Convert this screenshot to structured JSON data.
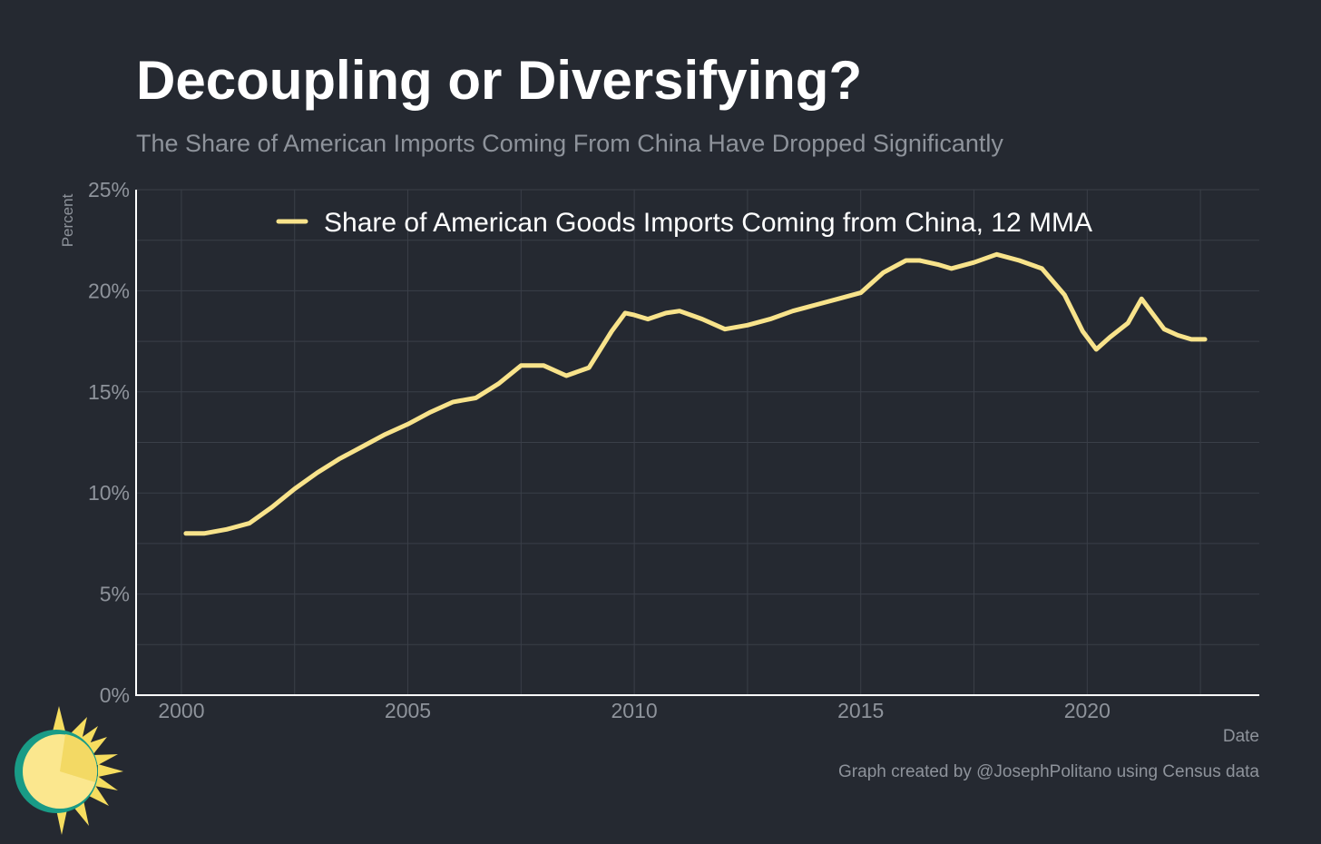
{
  "title": "Decoupling or Diversifying?",
  "subtitle": "The Share of American Imports Coming From China Have Dropped Significantly",
  "caption": "Graph created by @JosephPolitano using Census data",
  "colors": {
    "background": "#252931",
    "line": "#f8e38b",
    "grid": "#3a3f48",
    "axis": "#ffffff",
    "text_muted": "#8e939b"
  },
  "logo_icon": "sun-logo-icon",
  "chart_data": {
    "type": "line",
    "xlabel": "Date",
    "ylabel": "Percent",
    "xlim": [
      1999.0,
      2023.8
    ],
    "ylim": [
      0,
      25
    ],
    "x_ticks": [
      2000,
      2005,
      2010,
      2015,
      2020
    ],
    "x_tick_labels": [
      "2000",
      "2005",
      "2010",
      "2015",
      "2020"
    ],
    "y_ticks": [
      0,
      5,
      10,
      15,
      20,
      25
    ],
    "y_tick_labels": [
      "0%",
      "5%",
      "10%",
      "15%",
      "20%",
      "25%"
    ],
    "grid": true,
    "legend_position": "top-center",
    "series": [
      {
        "name": "Share of American Goods Imports Coming from China, 12 MMA",
        "x": [
          2000.1,
          2000.5,
          2001.0,
          2001.5,
          2002.0,
          2002.5,
          2003.0,
          2003.5,
          2004.0,
          2004.5,
          2005.0,
          2005.5,
          2006.0,
          2006.5,
          2007.0,
          2007.5,
          2008.0,
          2008.5,
          2009.0,
          2009.5,
          2009.8,
          2010.0,
          2010.3,
          2010.7,
          2011.0,
          2011.5,
          2012.0,
          2012.5,
          2013.0,
          2013.5,
          2014.0,
          2014.5,
          2015.0,
          2015.5,
          2016.0,
          2016.3,
          2016.7,
          2017.0,
          2017.5,
          2018.0,
          2018.5,
          2019.0,
          2019.5,
          2019.9,
          2020.2,
          2020.5,
          2020.9,
          2021.2,
          2021.4,
          2021.7,
          2022.0,
          2022.3,
          2022.6
        ],
        "y": [
          8.0,
          8.0,
          8.2,
          8.5,
          9.3,
          10.2,
          11.0,
          11.7,
          12.3,
          12.9,
          13.4,
          14.0,
          14.5,
          14.7,
          15.4,
          16.3,
          16.3,
          15.8,
          16.2,
          18.0,
          18.9,
          18.8,
          18.6,
          18.9,
          19.0,
          18.6,
          18.1,
          18.3,
          18.6,
          19.0,
          19.3,
          19.6,
          19.9,
          20.9,
          21.5,
          21.5,
          21.3,
          21.1,
          21.4,
          21.8,
          21.5,
          21.1,
          19.8,
          18.0,
          17.1,
          17.7,
          18.4,
          19.6,
          19.0,
          18.1,
          17.8,
          17.6,
          17.6
        ]
      }
    ]
  }
}
